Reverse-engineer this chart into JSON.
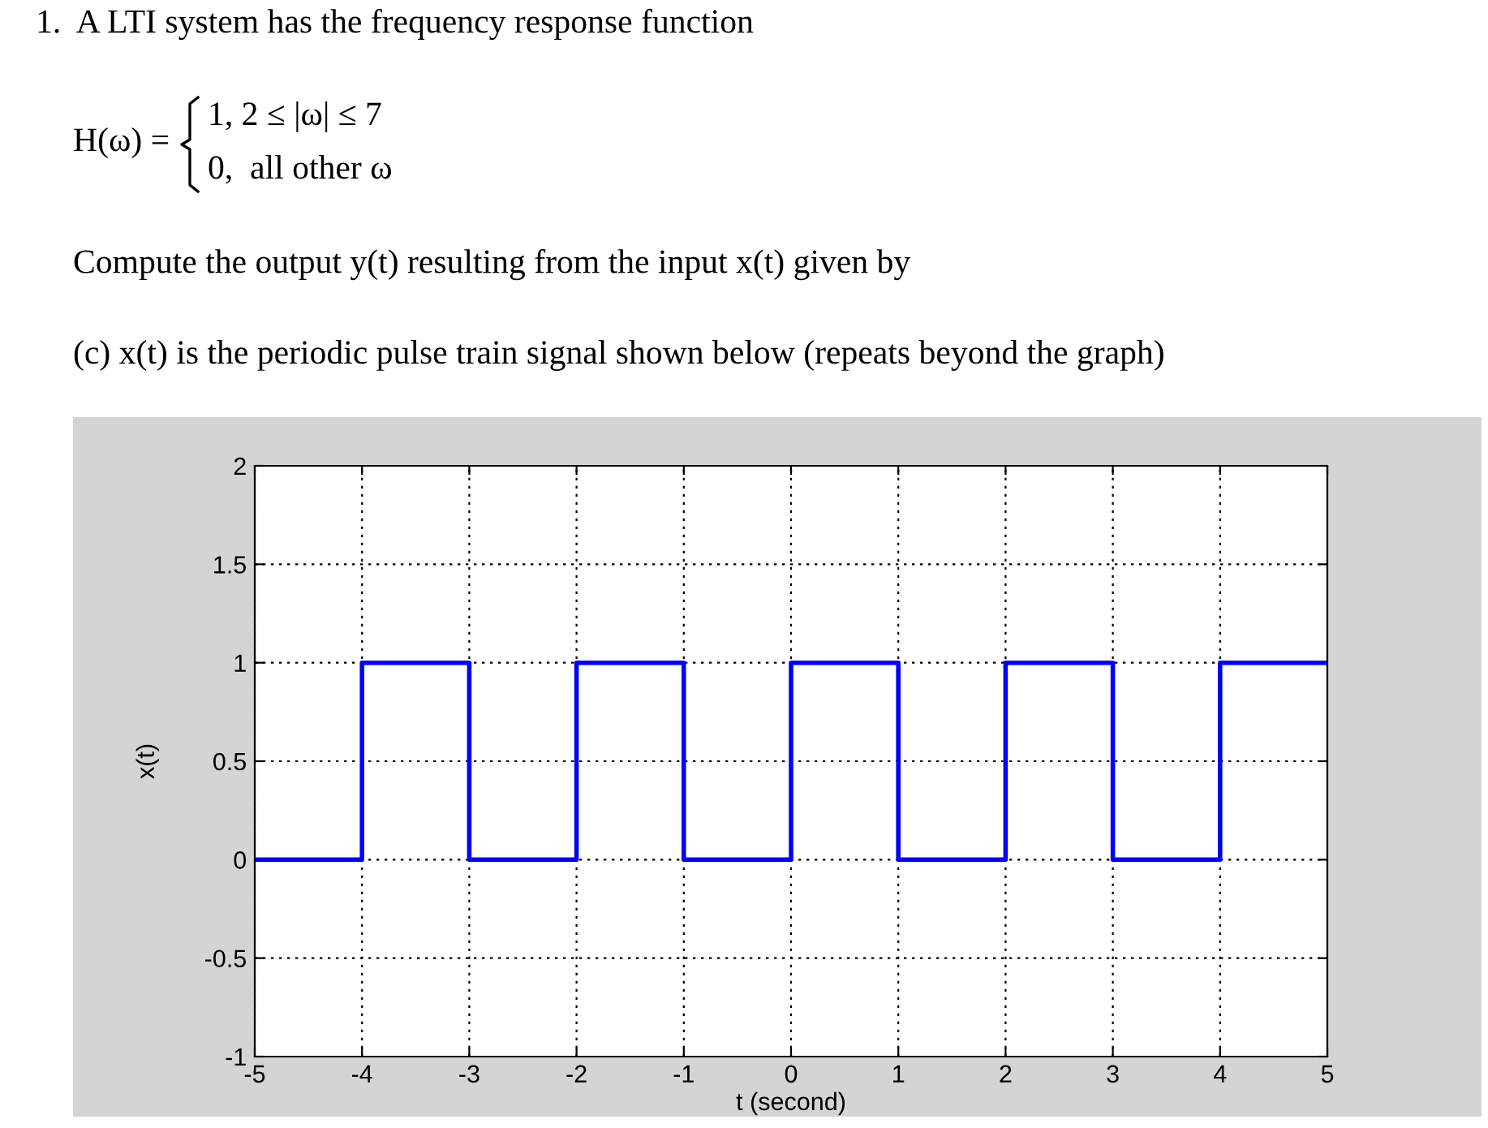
{
  "chart_data": {
    "type": "step",
    "xlabel": "t (second)",
    "ylabel": "x(t)",
    "annotations": [
      "1.  A LTI system has the frequency response function",
      "H(ω) =",
      "1, 2 ≤ |ω| ≤ 7",
      "0,  all other ω",
      "Compute the output y(t) resulting from the input x(t) given by",
      "(c) x(t) is the periodic pulse train signal shown below (repeats beyond the graph)"
    ],
    "x": [
      -5,
      -4,
      -3,
      -2,
      -1,
      0,
      1,
      2,
      3,
      4,
      5
    ],
    "series": [
      {
        "color": "#0000ff",
        "values": [
          0,
          1,
          0,
          1,
          0,
          1,
          0,
          1,
          0,
          1,
          1
        ]
      }
    ],
    "xlim": [
      -5,
      5
    ],
    "ylim": [
      -1,
      2
    ],
    "xticks": [
      -5,
      -4,
      -3,
      -2,
      -1,
      0,
      1,
      2,
      3,
      4,
      5
    ],
    "yticks": [
      -1,
      -0.5,
      0,
      0.5,
      1,
      1.5,
      2
    ],
    "grid": true,
    "line_style": "solid",
    "marker": "none"
  }
}
